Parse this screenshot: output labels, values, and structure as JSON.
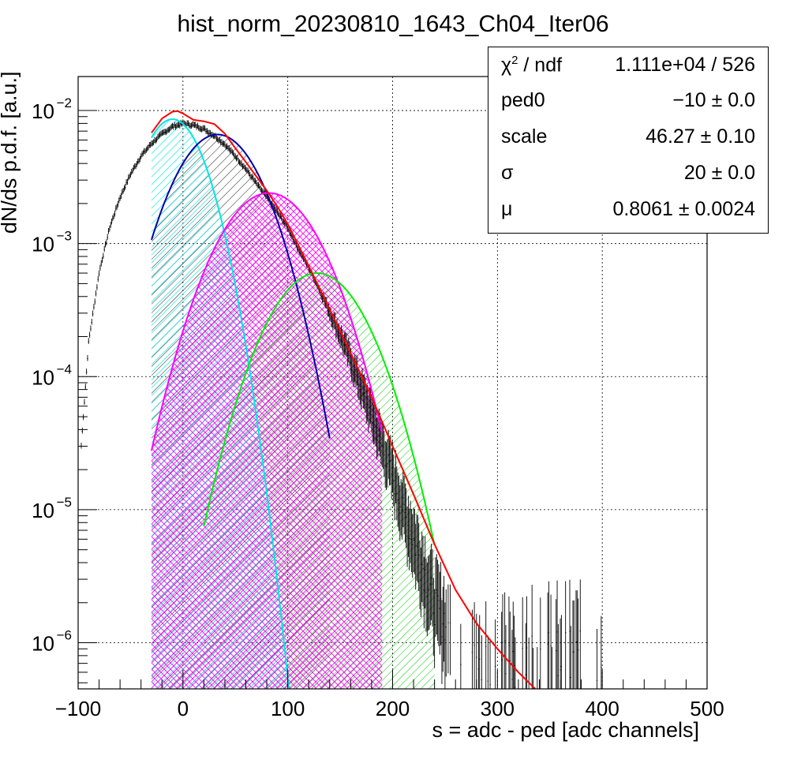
{
  "chart_data": {
    "type": "line",
    "title": "hist_norm_20230810_1643_Ch04_Iter06",
    "xlabel": "s = adc - ped [adc channels]",
    "ylabel": "dN/ds p.d.f. [a.u.]",
    "xlim": [
      -100,
      500
    ],
    "ylim": [
      4.5e-07,
      0.018
    ],
    "yscale": "log",
    "grid": true,
    "x_ticks": [
      "−100",
      "0",
      "100",
      "200",
      "300",
      "400",
      "500"
    ],
    "y_ticks": [
      {
        "base": "10",
        "exp": "−2",
        "value": 0.01
      },
      {
        "base": "10",
        "exp": "−3",
        "value": 0.001
      },
      {
        "base": "10",
        "exp": "−4",
        "value": 0.0001
      },
      {
        "base": "10",
        "exp": "−5",
        "value": 1e-05
      },
      {
        "base": "10",
        "exp": "−6",
        "value": 1e-06
      }
    ],
    "series": [
      {
        "role": "data-histogram",
        "color": "#000000",
        "x": [
          -97,
          -90,
          -80,
          -70,
          -60,
          -50,
          -40,
          -30,
          -20,
          -10,
          0,
          10,
          20,
          30,
          40,
          50,
          60,
          70,
          80,
          90,
          100,
          110,
          120,
          130,
          140,
          150,
          160,
          170,
          180,
          190,
          200,
          210,
          220,
          230,
          240,
          250,
          260,
          270,
          280,
          290,
          300,
          320,
          340,
          360,
          380,
          400
        ],
        "y": [
          3e-05,
          0.00018,
          0.0006,
          0.0013,
          0.0022,
          0.0033,
          0.0045,
          0.0056,
          0.0066,
          0.0075,
          0.0079,
          0.0077,
          0.0072,
          0.0064,
          0.0055,
          0.0045,
          0.0036,
          0.0028,
          0.0022,
          0.0017,
          0.0013,
          0.0009,
          0.00065,
          0.00045,
          0.0003,
          0.0002,
          0.00013,
          8e-05,
          5e-05,
          3e-05,
          1.8e-05,
          1e-05,
          6e-06,
          3.5e-06,
          2e-06,
          1.5e-06,
          1e-06,
          1e-06,
          8e-07,
          8e-07,
          8e-07,
          8e-07,
          8e-07,
          8e-07,
          8e-07,
          8e-07
        ]
      },
      {
        "role": "total-fit",
        "color": "#ff0000",
        "x": [
          -30,
          -20,
          -10,
          -5,
          0,
          10,
          20,
          30,
          40,
          50,
          60,
          70,
          80,
          90,
          100,
          120,
          140,
          160,
          180,
          200,
          220,
          240,
          260,
          280,
          300,
          320,
          336
        ],
        "y": [
          0.0068,
          0.0087,
          0.0098,
          0.0099,
          0.0095,
          0.0085,
          0.0083,
          0.0079,
          0.0067,
          0.0052,
          0.0041,
          0.0032,
          0.0025,
          0.0019,
          0.0014,
          0.00068,
          0.00032,
          0.00015,
          7e-05,
          3e-05,
          1.3e-05,
          5.5e-06,
          2.5e-06,
          1.4e-06,
          9e-07,
          6e-07,
          4.5e-07
        ]
      },
      {
        "role": "component-0",
        "color": "#00e5e5",
        "fill": "cyan-hatch",
        "mu": -10,
        "sigma": 25,
        "amp": 0.0086,
        "xmin": -30,
        "xmax": 140
      },
      {
        "role": "component-1",
        "color": "#0000aa",
        "fill": "black-hatch",
        "mu": 33,
        "sigma": 33,
        "amp": 0.0066,
        "xmin": -30,
        "xmax": 140
      },
      {
        "role": "component-2",
        "color": "#ff00ff",
        "fill": "magenta-crosshatch",
        "mu": 82,
        "sigma": 37.5,
        "amp": 0.0024,
        "xmin": -30,
        "xmax": 190
      },
      {
        "role": "component-3",
        "color": "#00ee00",
        "fill": "green-hatch",
        "mu": 128,
        "sigma": 36.5,
        "amp": 0.0006,
        "xmin": 20,
        "xmax": 240
      }
    ]
  },
  "stats": {
    "rows": [
      {
        "key": "χ",
        "sup": "2",
        "key_rest": " / ndf",
        "value": "1.111e+04 / 526"
      },
      {
        "key": "ped0",
        "sup": "",
        "key_rest": "",
        "value": "−10 ± 0.0"
      },
      {
        "key": "scale",
        "sup": "",
        "key_rest": "",
        "value": "46.27 ± 0.10"
      },
      {
        "key": "σ",
        "sup": "",
        "key_rest": "",
        "value": "20 ± 0.0"
      },
      {
        "key": "μ",
        "sup": "",
        "key_rest": "",
        "value": "0.8061 ± 0.0024"
      }
    ]
  }
}
